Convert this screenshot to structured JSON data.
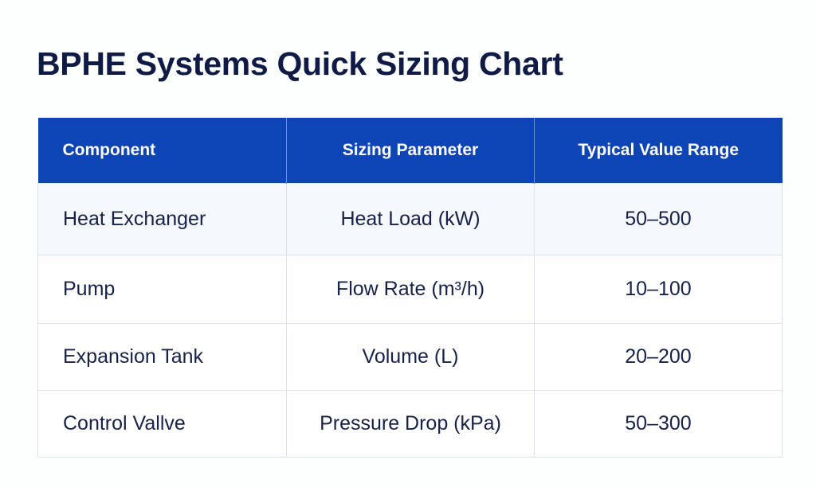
{
  "title": "BPHE Systems Quick Sizing Chart",
  "table": {
    "headers": [
      "Component",
      "Sizing Parameter",
      "Typical Value Range"
    ],
    "rows": [
      {
        "component": "Heat Exchanger",
        "parameter": "Heat Load (kW)",
        "range": "50–500"
      },
      {
        "component": "Pump",
        "parameter": "Flow Rate (m³/h)",
        "range": "10–100"
      },
      {
        "component": "Expansion Tank",
        "parameter": "Volume (L)",
        "range": "20–200"
      },
      {
        "component": "Control Vallve",
        "parameter": "Pressure Drop (kPa)",
        "range": "50–300"
      }
    ]
  },
  "colors": {
    "header_background": "#0d45b6",
    "title_text": "#0f1a45",
    "body_text": "#172149"
  }
}
